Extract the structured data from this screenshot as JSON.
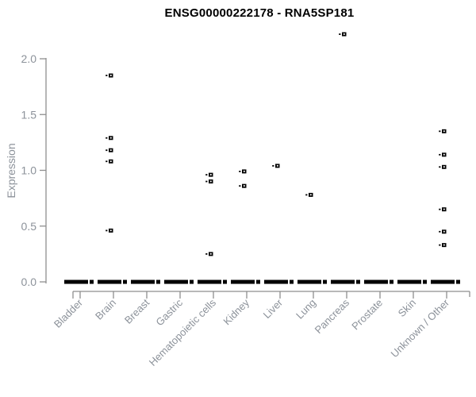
{
  "chart_data": {
    "type": "scatter",
    "title": "ENSG00000222178 - RNA5SP181",
    "ylabel": "Expression",
    "xlabel": "",
    "ylim": [
      0.0,
      2.0
    ],
    "grid": false,
    "legend": "none",
    "y_axis": {
      "ticks": [
        0.0,
        0.5,
        1.0,
        1.5,
        2.0
      ],
      "tick_labels": [
        "0.0",
        "0.5",
        "1.0",
        "1.5",
        "2.0"
      ]
    },
    "categories": [
      {
        "label": "Bladder",
        "points": [],
        "zero_cluster": true
      },
      {
        "label": "Brain",
        "points": [
          1.85,
          1.29,
          1.18,
          1.08,
          0.46
        ],
        "zero_cluster": true
      },
      {
        "label": "Breast",
        "points": [],
        "zero_cluster": true
      },
      {
        "label": "Gastric",
        "points": [],
        "zero_cluster": true
      },
      {
        "label": "Hematopoietic cells",
        "points": [
          0.96,
          0.9,
          0.25
        ],
        "zero_cluster": true
      },
      {
        "label": "Kidney",
        "points": [
          0.99,
          0.86
        ],
        "zero_cluster": true
      },
      {
        "label": "Liver",
        "points": [
          1.04
        ],
        "zero_cluster": true
      },
      {
        "label": "Lung",
        "points": [
          0.78
        ],
        "zero_cluster": true
      },
      {
        "label": "Pancreas",
        "points": [
          2.22
        ],
        "zero_cluster": true
      },
      {
        "label": "Prostate",
        "points": [],
        "zero_cluster": true
      },
      {
        "label": "Skin",
        "points": [],
        "zero_cluster": true
      },
      {
        "label": "Unknown / Other",
        "points": [
          1.35,
          1.14,
          1.03,
          0.65,
          0.45,
          0.33
        ],
        "zero_cluster": true
      }
    ],
    "colors": {
      "point": "#000000",
      "zero_bar": "#000000",
      "axis_line": "#8e8e8e",
      "tick_label": "#8c929a",
      "title": "#000000",
      "background": "#ffffff"
    }
  }
}
